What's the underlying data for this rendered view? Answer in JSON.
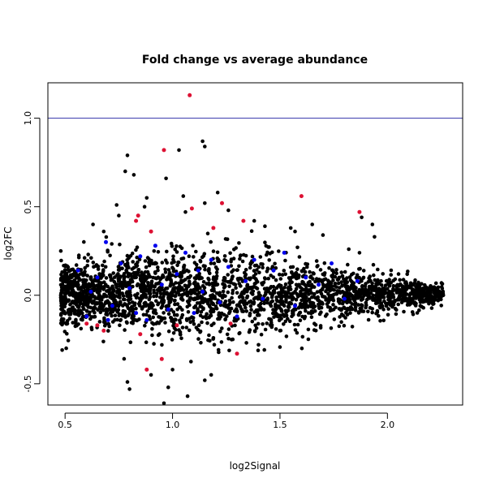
{
  "chart_data": {
    "type": "scatter",
    "title": "Fold change vs average abundance",
    "xlabel": "log2Signal",
    "ylabel": "log2FC",
    "xlim": [
      0.42,
      2.35
    ],
    "ylim": [
      -0.62,
      1.2
    ],
    "xticks": [
      0.5,
      1.0,
      1.5,
      2.0
    ],
    "xtick_labels": [
      "0.5",
      "1.0",
      "1.5",
      "2.0"
    ],
    "yticks": [
      -0.5,
      0.0,
      0.5,
      1.0
    ],
    "ytick_labels": [
      "-0.5",
      "0.0",
      "0.5",
      "1.0"
    ],
    "grid": false,
    "hline": {
      "y": 1.0,
      "color": "#3333aa"
    },
    "series": [
      {
        "color": "#000000",
        "points": [
          [
            0.79,
            0.79
          ],
          [
            1.03,
            0.82
          ],
          [
            1.14,
            0.87
          ],
          [
            1.15,
            0.84
          ],
          [
            0.78,
            0.7
          ],
          [
            0.82,
            0.68
          ],
          [
            0.97,
            0.66
          ],
          [
            1.21,
            0.58
          ],
          [
            0.88,
            0.55
          ],
          [
            1.38,
            0.42
          ],
          [
            1.43,
            0.39
          ],
          [
            1.55,
            0.38
          ],
          [
            1.57,
            0.36
          ],
          [
            1.65,
            0.4
          ],
          [
            1.7,
            0.34
          ],
          [
            1.82,
            0.26
          ],
          [
            1.87,
            0.24
          ],
          [
            1.88,
            0.44
          ],
          [
            1.93,
            0.4
          ],
          [
            1.94,
            0.33
          ],
          [
            0.63,
            0.4
          ],
          [
            0.68,
            0.36
          ],
          [
            0.75,
            0.45
          ],
          [
            1.26,
            0.48
          ],
          [
            1.06,
            0.47
          ],
          [
            1.05,
            0.56
          ],
          [
            0.74,
            0.51
          ],
          [
            0.87,
            0.5
          ],
          [
            1.15,
            0.52
          ],
          [
            0.79,
            -0.49
          ],
          [
            0.8,
            -0.53
          ],
          [
            0.9,
            -0.45
          ],
          [
            0.98,
            -0.52
          ],
          [
            1.07,
            -0.57
          ],
          [
            0.96,
            -0.61
          ],
          [
            1.15,
            -0.48
          ],
          [
            1.18,
            -0.45
          ],
          [
            1.0,
            -0.42
          ],
          [
            1.4,
            -0.28
          ],
          [
            1.5,
            -0.2
          ],
          [
            1.66,
            -0.16
          ],
          [
            1.75,
            -0.08
          ],
          [
            2.02,
            0.02
          ],
          [
            2.1,
            -0.02
          ],
          [
            2.18,
            0.01
          ],
          [
            2.26,
            0.0
          ],
          [
            2.22,
            -0.01
          ],
          [
            0.48,
            0.0
          ],
          [
            0.5,
            0.05
          ],
          [
            0.52,
            -0.08
          ]
        ]
      },
      {
        "color": "#0000ee",
        "points": [
          [
            0.56,
            0.14
          ],
          [
            0.6,
            -0.12
          ],
          [
            0.65,
            0.1
          ],
          [
            0.69,
            0.3
          ],
          [
            0.72,
            -0.06
          ],
          [
            0.76,
            0.18
          ],
          [
            0.8,
            0.04
          ],
          [
            0.85,
            0.22
          ],
          [
            0.88,
            -0.14
          ],
          [
            0.92,
            0.28
          ],
          [
            0.95,
            0.06
          ],
          [
            0.98,
            -0.08
          ],
          [
            1.02,
            0.12
          ],
          [
            1.06,
            0.24
          ],
          [
            1.1,
            -0.1
          ],
          [
            1.14,
            0.02
          ],
          [
            1.18,
            0.2
          ],
          [
            1.22,
            -0.04
          ],
          [
            1.26,
            0.16
          ],
          [
            1.3,
            -0.12
          ],
          [
            1.34,
            0.08
          ],
          [
            1.38,
            0.2
          ],
          [
            1.42,
            -0.02
          ],
          [
            1.47,
            0.14
          ],
          [
            1.52,
            0.24
          ],
          [
            1.57,
            -0.06
          ],
          [
            1.62,
            0.1
          ],
          [
            1.68,
            0.06
          ],
          [
            1.74,
            0.18
          ],
          [
            1.8,
            -0.02
          ],
          [
            1.86,
            0.08
          ],
          [
            0.62,
            0.02
          ],
          [
            0.7,
            -0.14
          ],
          [
            0.83,
            -0.1
          ],
          [
            1.12,
            0.14
          ]
        ]
      },
      {
        "color": "#dd1133",
        "points": [
          [
            1.08,
            1.13
          ],
          [
            0.96,
            0.82
          ],
          [
            1.6,
            0.56
          ],
          [
            1.87,
            0.47
          ],
          [
            1.23,
            0.52
          ],
          [
            1.19,
            0.38
          ],
          [
            1.33,
            0.42
          ],
          [
            1.09,
            0.49
          ],
          [
            0.84,
            0.45
          ],
          [
            0.9,
            0.36
          ],
          [
            0.83,
            0.42
          ],
          [
            0.65,
            -0.17
          ],
          [
            0.68,
            -0.2
          ],
          [
            0.88,
            -0.42
          ],
          [
            0.95,
            -0.36
          ],
          [
            1.3,
            -0.33
          ],
          [
            0.85,
            -0.22
          ],
          [
            1.02,
            -0.17
          ],
          [
            1.27,
            -0.16
          ],
          [
            0.6,
            -0.16
          ]
        ]
      }
    ]
  }
}
